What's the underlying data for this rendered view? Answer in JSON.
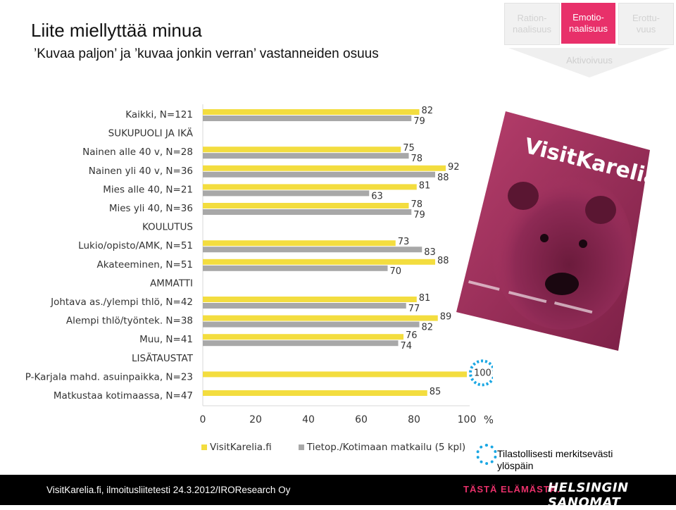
{
  "title": "Liite miellyttää minua",
  "subtitle": "’Kuvaa paljon’ ja ’kuvaa jonkin verran’ vastanneiden osuus",
  "tabs": [
    {
      "label": "Ration-\nnaalisuus"
    },
    {
      "label": "Emotio-\nnaalisuus"
    },
    {
      "label": "Erottu-\nvuus"
    }
  ],
  "tab_under": "Aktivoivuus",
  "colors": {
    "series1": "#f3dd3f",
    "series2": "#a8a8a8",
    "accent": "#e8306a",
    "signif": "#1aa7e3"
  },
  "magazine": {
    "masthead": "VisitKarelia.fi",
    "icon": "bear-cover-image"
  },
  "chart_data": {
    "type": "bar",
    "orientation": "horizontal",
    "x_unit": "%",
    "xlim": [
      0,
      100
    ],
    "xticks": [
      0,
      20,
      40,
      60,
      80,
      100
    ],
    "rows": [
      {
        "label": "Kaikki, N=121",
        "header": false,
        "v1": 82,
        "v2": 79
      },
      {
        "label": "SUKUPUOLI JA IKÄ",
        "header": true
      },
      {
        "label": "Nainen alle 40 v, N=28",
        "header": false,
        "v1": 75,
        "v2": 78
      },
      {
        "label": "Nainen yli 40 v, N=36",
        "header": false,
        "v1": 92,
        "v2": 88
      },
      {
        "label": "Mies alle 40, N=21",
        "header": false,
        "v1": 81,
        "v2": 63
      },
      {
        "label": "Mies yli 40, N=36",
        "header": false,
        "v1": 78,
        "v2": 79
      },
      {
        "label": "KOULUTUS",
        "header": true
      },
      {
        "label": "Lukio/opisto/AMK, N=51",
        "header": false,
        "v1": 73,
        "v2": 83
      },
      {
        "label": "Akateeminen, N=51",
        "header": false,
        "v1": 88,
        "v2": 70
      },
      {
        "label": "AMMATTI",
        "header": true
      },
      {
        "label": "Johtava as./ylempi thlö, N=42",
        "header": false,
        "v1": 81,
        "v2": 77
      },
      {
        "label": "Alempi thlö/työntek. N=38",
        "header": false,
        "v1": 89,
        "v2": 82
      },
      {
        "label": "Muu, N=41",
        "header": false,
        "v1": 76,
        "v2": 74
      },
      {
        "label": "LISÄTAUSTAT",
        "header": true
      },
      {
        "label": "P-Karjala mahd. asuinpaikka, N=23",
        "header": false,
        "v1": 100,
        "v2": null,
        "significant": true
      },
      {
        "label": "Matkustaa kotimaassa, N=47",
        "header": false,
        "v1": 85,
        "v2": null
      }
    ],
    "series": [
      {
        "name": "VisitKarelia.fi"
      },
      {
        "name": "Tietop./Kotimaan matkailu (5 kpl)"
      }
    ]
  },
  "significance_note": "Tilastollisesti merkitsevästi ylöspäin",
  "footer": {
    "source": "VisitKarelia.fi, ilmoitusliitetesti 24.3.2012/IRO​Research Oy",
    "slogan": "TÄSTÄ ELÄMÄSTÄ.",
    "brand": "HELSINGIN SANOMAT"
  }
}
